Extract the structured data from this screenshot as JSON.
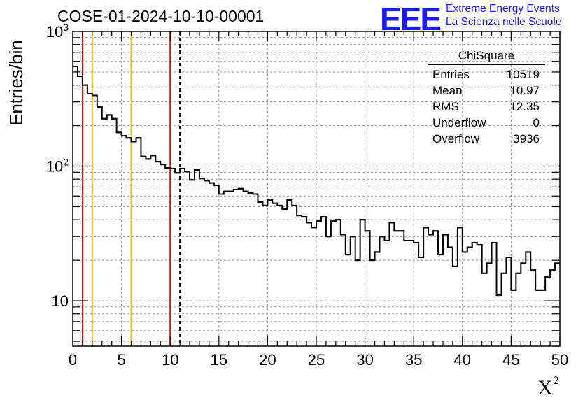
{
  "header": {
    "title": "COSE-01-2024-10-10-00001",
    "logo_mark": "EEE",
    "logo_line1": "Extreme Energy Events",
    "logo_line2": "La Scienza nelle Scuole"
  },
  "colors": {
    "logo": "#1a1aff",
    "red_line": "#e8120c",
    "yellow_line": "#f5b800",
    "grid": "#9a9a9a",
    "histogram": "#000000"
  },
  "stats_box": {
    "title": "ChiSquare",
    "rows": [
      {
        "label": "Entries",
        "value": "10519"
      },
      {
        "label": "Mean",
        "value": "10.97"
      },
      {
        "label": "RMS",
        "value": "12.35"
      },
      {
        "label": "Underflow",
        "value": "0"
      },
      {
        "label": "Overflow",
        "value": "3936"
      }
    ]
  },
  "chart_data": {
    "type": "histogram",
    "title": "COSE-01-2024-10-10-00001",
    "xlabel": "X",
    "xlabel_superscript": "2",
    "ylabel": "Entries/bin",
    "xlim": [
      0,
      50
    ],
    "ylim": [
      4.6,
      1000
    ],
    "yscale": "log",
    "bin_width": 0.5,
    "x_ticks": [
      0,
      5,
      10,
      15,
      20,
      25,
      30,
      35,
      40,
      45,
      50
    ],
    "y_ticks": [
      {
        "value": 10,
        "base": "10",
        "exp": ""
      },
      {
        "value": 100,
        "base": "10",
        "exp": "2"
      },
      {
        "value": 1000,
        "base": "10",
        "exp": "3"
      }
    ],
    "values": [
      550,
      465,
      400,
      345,
      335,
      275,
      225,
      240,
      225,
      178,
      168,
      162,
      152,
      162,
      118,
      113,
      120,
      108,
      103,
      97,
      96,
      89,
      96,
      91,
      79,
      94,
      81,
      78,
      75,
      72,
      62,
      65,
      65,
      67,
      68,
      65,
      63,
      62,
      54,
      51,
      56,
      53,
      51,
      48,
      56,
      51,
      43,
      42,
      38,
      35,
      39,
      42,
      30,
      39,
      40,
      31,
      22,
      30,
      20,
      40,
      33,
      20,
      23,
      30,
      28,
      38,
      33,
      33,
      28,
      28,
      27,
      21,
      35,
      31,
      33,
      22,
      31,
      25,
      18,
      35,
      23,
      25,
      27,
      26,
      16,
      19,
      27,
      11,
      16,
      21,
      12,
      16,
      19,
      23,
      17,
      12,
      12,
      15,
      17,
      19
    ],
    "vertical_lines": [
      {
        "x": 1,
        "color": "red",
        "style": "solid"
      },
      {
        "x": 2,
        "color": "yellow",
        "style": "solid"
      },
      {
        "x": 6,
        "color": "yellow",
        "style": "solid"
      },
      {
        "x": 10,
        "color": "red",
        "style": "solid"
      },
      {
        "x": 11,
        "color": "black",
        "style": "dashed"
      }
    ],
    "grid": true
  }
}
